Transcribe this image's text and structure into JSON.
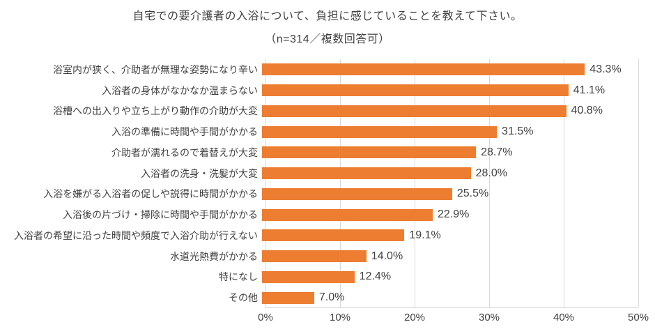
{
  "chart_data": {
    "type": "bar",
    "orientation": "horizontal",
    "title": "自宅での要介護者の入浴について、負担に感じていることを教えて下さい。",
    "subtitle": "（n=314／複数回答可）",
    "categories": [
      "浴室内が狭く、介助者が無理な姿勢になり辛い",
      "入浴者の身体がなかなか温まらない",
      "浴槽への出入りや立ち上がり動作の介助が大変",
      "入浴の準備に時間や手間がかかる",
      "介助者が濡れるので着替えが大変",
      "入浴者の洗身・洗髪が大変",
      "入浴を嫌がる入浴者の促しや説得に時間がかかる",
      "入浴後の片づけ・掃除に時間や手間がかかる",
      "入浴者の希望に沿った時間や頻度で入浴介助が行えない",
      "水道光熱費がかかる",
      "特になし",
      "その他"
    ],
    "values": [
      43.3,
      41.1,
      40.8,
      31.5,
      28.7,
      28.0,
      25.5,
      22.9,
      19.1,
      14.0,
      12.4,
      7.0
    ],
    "value_labels": [
      "43.3%",
      "41.1%",
      "40.8%",
      "31.5%",
      "28.7%",
      "28.0%",
      "25.5%",
      "22.9%",
      "19.1%",
      "14.0%",
      "12.4%",
      "7.0%"
    ],
    "xlabel": "",
    "ylabel": "",
    "xlim": [
      0,
      50
    ],
    "x_ticks": [
      "0%",
      "10%",
      "20%",
      "30%",
      "40%",
      "50%"
    ],
    "x_tick_values": [
      0,
      10,
      20,
      30,
      40,
      50
    ],
    "grid": true,
    "legend": "none",
    "bar_color": "#ed7d31",
    "gridline_color": "#d9d9d9",
    "text_color": "#404040"
  }
}
